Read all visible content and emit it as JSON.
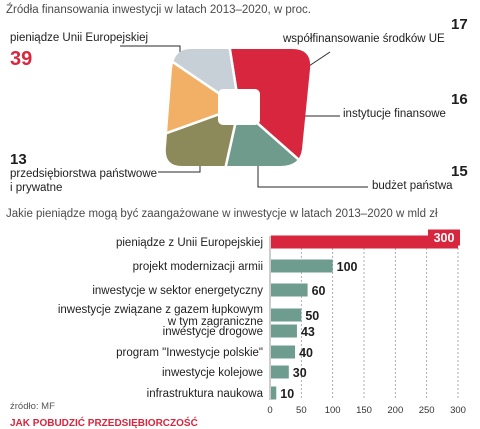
{
  "chart_data": [
    {
      "type": "pie",
      "title": "Źródła finansowania inwestycji w latach 2013–2020, w proc.",
      "series": [
        {
          "name": "pieniądze Unii Europejskiej",
          "value": 39,
          "color": "#d7263d"
        },
        {
          "name": "współfinansowanie środków UE",
          "value": 17,
          "color": "#6f9b8c"
        },
        {
          "name": "instytucje finansowe",
          "value": 16,
          "color": "#8c8a5a"
        },
        {
          "name": "budżet państwa",
          "value": 15,
          "color": "#f2b066"
        },
        {
          "name": "przedsiębiorstwa państwowe i prywatne",
          "value": 13,
          "color": "#c6d0d6"
        }
      ]
    },
    {
      "type": "bar",
      "orientation": "horizontal",
      "title": "Jakie pieniądze mogą być zaangażowane w inwestycje w latach 2013–2020 w mld zł",
      "categories": [
        "pieniądze z Unii Europejskiej",
        "projekt modernizacji armii",
        "inwestycje w sektor energetyczny",
        "inwestycje związane z gazem łupkowym w tym zagraniczne",
        "inwestycje drogowe",
        "program \"Inwestycje polskie\"",
        "inwestycje kolejowe",
        "infrastruktura naukowa"
      ],
      "values": [
        300,
        100,
        60,
        50,
        43,
        40,
        30,
        10
      ],
      "xlim": [
        0,
        300
      ],
      "xticks": [
        0,
        50,
        100,
        150,
        200,
        250,
        300
      ],
      "grid": true,
      "colors": {
        "highlight": "#d7263d",
        "normal": "#6e9d90"
      }
    }
  ],
  "source": "źródło: MF",
  "footer": "JAK POBUDZIĆ PRZEDSIĘBIORCZOŚĆ"
}
